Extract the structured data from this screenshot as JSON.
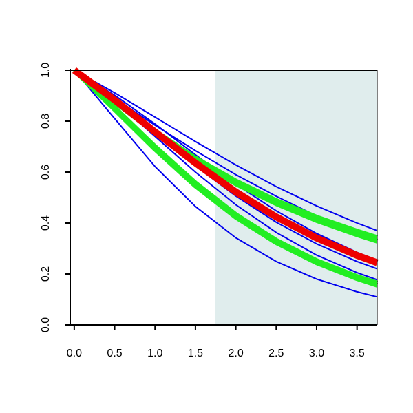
{
  "chart_data": {
    "type": "line",
    "title": "",
    "xlabel": "",
    "ylabel": "",
    "xlim": [
      -0.05,
      3.75
    ],
    "ylim": [
      0.0,
      1.0
    ],
    "x_ticks": [
      0.0,
      0.5,
      1.0,
      1.5,
      2.0,
      2.5,
      3.0,
      3.5
    ],
    "x_tick_labels": [
      "0.0",
      "0.5",
      "1.0",
      "1.5",
      "2.0",
      "2.5",
      "3.0",
      "3.5"
    ],
    "y_ticks": [
      0.0,
      0.2,
      0.4,
      0.6,
      0.8,
      1.0
    ],
    "y_tick_labels": [
      "0.0",
      "0.2",
      "0.4",
      "0.6",
      "0.8",
      "1.0"
    ],
    "grid": false,
    "shaded_region": {
      "x_start": 1.74,
      "x_end": 3.75,
      "color": "#e0eded"
    },
    "colors": {
      "blue": "#0000ee",
      "green": "#22ee22",
      "red": "#ee0000",
      "black": "#000000"
    },
    "series": [
      {
        "color": "blue",
        "width": "thin",
        "x": [
          0,
          0.5,
          1.0,
          1.5,
          2.0,
          2.5,
          3.0,
          3.5,
          3.75
        ],
        "y": [
          1.0,
          0.878,
          0.761,
          0.655,
          0.565,
          0.488,
          0.423,
          0.368,
          0.343
        ]
      },
      {
        "color": "blue",
        "width": "thin",
        "x": [
          0,
          0.5,
          1.0,
          1.5,
          2.0,
          2.5,
          3.0,
          3.5,
          3.75
        ],
        "y": [
          1.0,
          0.911,
          0.816,
          0.72,
          0.628,
          0.543,
          0.467,
          0.4,
          0.37
        ]
      },
      {
        "color": "blue",
        "width": "thin",
        "x": [
          0,
          0.5,
          1.0,
          1.5,
          2.0,
          2.5,
          3.0,
          3.5,
          3.75
        ],
        "y": [
          1.0,
          0.902,
          0.789,
          0.668,
          0.552,
          0.448,
          0.359,
          0.285,
          0.254
        ]
      },
      {
        "color": "blue",
        "width": "thin",
        "x": [
          0,
          0.5,
          1.0,
          1.5,
          2.0,
          2.5,
          3.0,
          3.5,
          3.75
        ],
        "y": [
          1.0,
          0.891,
          0.767,
          0.644,
          0.528,
          0.426,
          0.34,
          0.269,
          0.238
        ]
      },
      {
        "color": "blue",
        "width": "thin",
        "x": [
          0,
          0.5,
          1.0,
          1.5,
          2.0,
          2.5,
          3.0,
          3.5,
          3.75
        ],
        "y": [
          1.0,
          0.883,
          0.752,
          0.624,
          0.506,
          0.403,
          0.318,
          0.249,
          0.22
        ]
      },
      {
        "color": "blue",
        "width": "thin",
        "x": [
          0,
          0.5,
          1.0,
          1.5,
          2.0,
          2.5,
          3.0,
          3.5,
          3.75
        ],
        "y": [
          1.0,
          0.89,
          0.784,
          0.684,
          0.59,
          0.505,
          0.428,
          0.36,
          0.33
        ]
      },
      {
        "color": "blue",
        "width": "thin",
        "x": [
          0,
          0.5,
          1.0,
          1.5,
          2.0,
          2.5,
          3.0,
          3.5,
          3.75
        ],
        "y": [
          1.0,
          0.81,
          0.622,
          0.465,
          0.342,
          0.249,
          0.18,
          0.13,
          0.11
        ]
      },
      {
        "color": "blue",
        "width": "thin",
        "x": [
          0,
          0.5,
          1.0,
          1.5,
          2.0,
          2.5,
          3.0,
          3.5,
          3.75
        ],
        "y": [
          1.0,
          0.879,
          0.74,
          0.6,
          0.472,
          0.363,
          0.274,
          0.205,
          0.177
        ]
      },
      {
        "color": "green",
        "width": "medium",
        "x": [
          0,
          0.5,
          1.0,
          1.5,
          2.0,
          2.5,
          3.0,
          3.5,
          3.75
        ],
        "y": [
          1.0,
          0.878,
          0.761,
          0.655,
          0.565,
          0.488,
          0.423,
          0.368,
          0.343
        ]
      },
      {
        "color": "green",
        "width": "medium",
        "x": [
          0,
          0.5,
          1.0,
          1.5,
          2.0,
          2.5,
          3.0,
          3.5,
          3.75
        ],
        "y": [
          1.0,
          0.875,
          0.755,
          0.646,
          0.554,
          0.476,
          0.41,
          0.354,
          0.329
        ]
      },
      {
        "color": "green",
        "width": "medium",
        "x": [
          0,
          0.5,
          1.0,
          1.5,
          2.0,
          2.5,
          3.0,
          3.5,
          3.75
        ],
        "y": [
          1.0,
          0.853,
          0.7,
          0.557,
          0.433,
          0.332,
          0.252,
          0.19,
          0.164
        ]
      },
      {
        "color": "green",
        "width": "medium",
        "x": [
          0,
          0.5,
          1.0,
          1.5,
          2.0,
          2.5,
          3.0,
          3.5,
          3.75
        ],
        "y": [
          1.0,
          0.846,
          0.69,
          0.546,
          0.423,
          0.323,
          0.244,
          0.182,
          0.156
        ]
      },
      {
        "color": "red",
        "width": "thick",
        "x": [
          0,
          0.5,
          1.0,
          1.5,
          2.0,
          2.5,
          3.0,
          3.5,
          3.75
        ],
        "y": [
          1.0,
          0.883,
          0.758,
          0.636,
          0.522,
          0.424,
          0.341,
          0.273,
          0.244
        ]
      }
    ]
  }
}
